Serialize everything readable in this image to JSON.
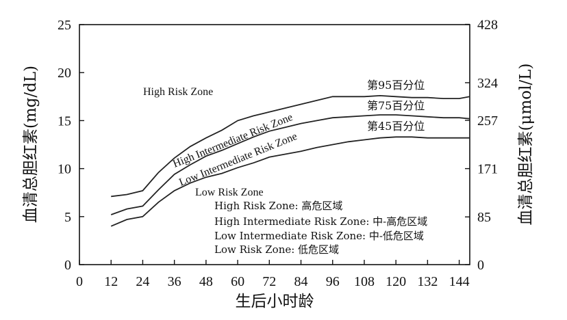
{
  "chart_data": {
    "type": "line",
    "title": "",
    "xlabel": "生后小时龄",
    "ylabel_left": "血清总胆红素(mg/dL)",
    "ylabel_right": "血清总胆红素(μmol/L)",
    "xlim": [
      0,
      148
    ],
    "ylim_left": [
      0,
      25
    ],
    "x_ticks": [
      0,
      12,
      24,
      36,
      48,
      60,
      72,
      84,
      96,
      108,
      120,
      132,
      144
    ],
    "y_ticks_left": [
      0,
      5,
      10,
      15,
      20,
      25
    ],
    "y_ticks_right": [
      {
        "label": "0",
        "value": 0
      },
      {
        "label": "85",
        "value": 4.97
      },
      {
        "label": "171",
        "value": 10.0
      },
      {
        "label": "257",
        "value": 15.03
      },
      {
        "label": "324",
        "value": 18.95
      },
      {
        "label": "428",
        "value": 25.03
      }
    ],
    "series": [
      {
        "name": "第95百分位",
        "x": [
          12,
          18,
          24,
          30,
          36,
          42,
          48,
          54,
          60,
          66,
          72,
          78,
          84,
          90,
          96,
          102,
          108,
          114,
          120,
          126,
          132,
          138,
          144,
          148
        ],
        "y": [
          7.1,
          7.3,
          7.7,
          9.6,
          11.1,
          12.3,
          13.2,
          14.0,
          15.0,
          15.5,
          15.9,
          16.3,
          16.7,
          17.1,
          17.5,
          17.5,
          17.5,
          17.6,
          17.5,
          17.4,
          17.4,
          17.3,
          17.3,
          17.5
        ]
      },
      {
        "name": "第75百分位",
        "x": [
          12,
          18,
          24,
          30,
          36,
          42,
          48,
          54,
          60,
          66,
          72,
          78,
          84,
          90,
          96,
          102,
          108,
          114,
          120,
          126,
          132,
          138,
          144,
          148
        ],
        "y": [
          5.2,
          5.8,
          6.1,
          7.8,
          9.4,
          10.4,
          11.3,
          11.9,
          12.6,
          13.3,
          13.9,
          14.3,
          14.7,
          15.0,
          15.3,
          15.4,
          15.5,
          15.6,
          15.6,
          15.5,
          15.4,
          15.3,
          15.3,
          15.2
        ]
      },
      {
        "name": "第45百分位",
        "x": [
          12,
          18,
          24,
          30,
          36,
          42,
          48,
          54,
          60,
          66,
          72,
          78,
          84,
          90,
          96,
          102,
          108,
          114,
          120,
          126,
          132,
          138,
          144,
          148
        ],
        "y": [
          4.0,
          4.7,
          5.0,
          6.5,
          7.7,
          8.5,
          9.1,
          9.5,
          10.1,
          10.6,
          11.2,
          11.5,
          11.8,
          12.2,
          12.5,
          12.8,
          13.0,
          13.2,
          13.3,
          13.3,
          13.2,
          13.2,
          13.2,
          13.2
        ]
      }
    ],
    "zone_labels": {
      "high": "High Risk Zone",
      "high_intermediate": "High Intermediate Risk Zone",
      "low_intermediate": "Low Intermediate Risk Zone",
      "low": "Low Risk Zone"
    },
    "legend_notes": [
      "High Risk Zone: 高危区域",
      "High Intermediate Risk Zone: 中-高危区域",
      "Low Intermediate Risk Zone: 中-低危区域",
      "Low Risk Zone: 低危区域"
    ],
    "grid": false
  }
}
